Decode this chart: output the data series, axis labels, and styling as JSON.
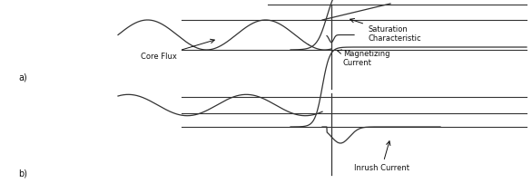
{
  "bg_color": "#ffffff",
  "line_color": "#333333",
  "annotation_color": "#111111",
  "fig_width": 5.86,
  "fig_height": 2.13,
  "dpi": 100,
  "labels": {
    "core_flux": "Core Flux",
    "magnetizing_current": "Magnetizing\nCurrent",
    "saturation_characteristic": "Saturation\nCharacteristic",
    "inrush_current": "Inrush Current",
    "a_label": "a)",
    "b_label": "b)"
  }
}
